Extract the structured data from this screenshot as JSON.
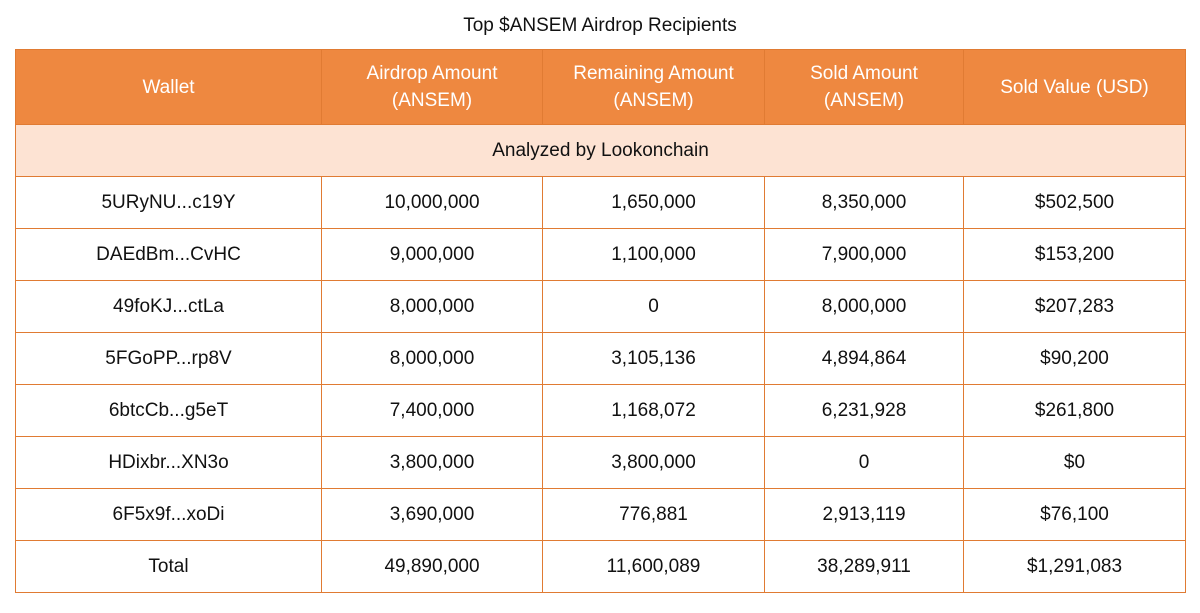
{
  "title": "Top $ANSEM Airdrop Recipients",
  "accent_color": "#ee8840",
  "note_row_color": "#fde3d3",
  "columns": [
    {
      "line1": "Wallet",
      "line2": ""
    },
    {
      "line1": "Airdrop Amount",
      "line2": "(ANSEM)"
    },
    {
      "line1": "Remaining Amount",
      "line2": "(ANSEM)"
    },
    {
      "line1": "Sold Amount",
      "line2": "(ANSEM)"
    },
    {
      "line1": "Sold Value (USD)",
      "line2": ""
    }
  ],
  "note": "Analyzed by Lookonchain",
  "rows": [
    [
      "5URyNU...c19Y",
      "10,000,000",
      "1,650,000",
      "8,350,000",
      "$502,500"
    ],
    [
      "DAEdBm...CvHC",
      "9,000,000",
      "1,100,000",
      "7,900,000",
      "$153,200"
    ],
    [
      "49foKJ...ctLa",
      "8,000,000",
      "0",
      "8,000,000",
      "$207,283"
    ],
    [
      "5FGoPP...rp8V",
      "8,000,000",
      "3,105,136",
      "4,894,864",
      "$90,200"
    ],
    [
      "6btcCb...g5eT",
      "7,400,000",
      "1,168,072",
      "6,231,928",
      "$261,800"
    ],
    [
      "HDixbr...XN3o",
      "3,800,000",
      "3,800,000",
      "0",
      "$0"
    ],
    [
      "6F5x9f...xoDi",
      "3,690,000",
      "776,881",
      "2,913,119",
      "$76,100"
    ],
    [
      "Total",
      "49,890,000",
      "11,600,089",
      "38,289,911",
      "$1,291,083"
    ]
  ]
}
